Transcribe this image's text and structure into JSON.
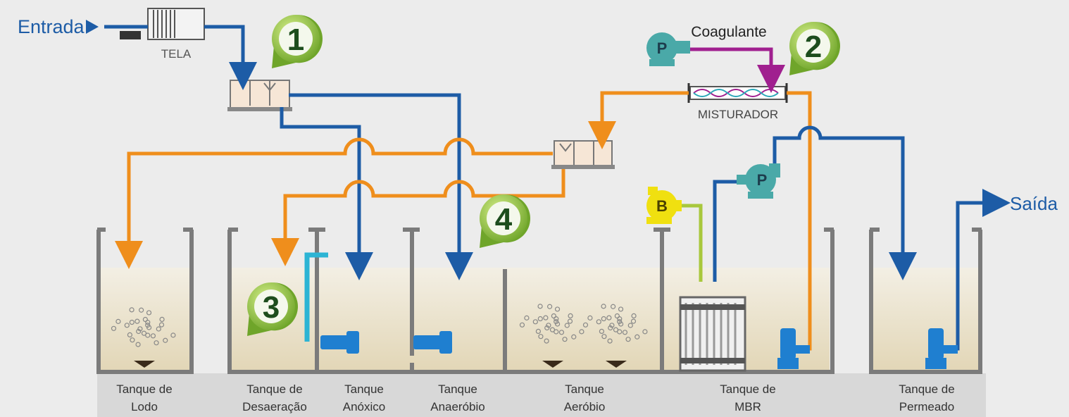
{
  "labels": {
    "entrada": "Entrada",
    "saida": "Saída",
    "tela": "TELA",
    "coagulante": "Coagulante",
    "misturador": "MISTURADOR"
  },
  "markers": [
    "1",
    "2",
    "3",
    "4"
  ],
  "equipment": {
    "pump_coagulant": "P",
    "pump_permeate": "P",
    "blower": "B"
  },
  "tanks": [
    {
      "line1": "Tanque de",
      "line2": "Lodo"
    },
    {
      "line1": "Tanque de",
      "line2": "Desaeração"
    },
    {
      "line1": "Tanque",
      "line2": "Anóxico"
    },
    {
      "line1": "Tanque",
      "line2": "Anaeróbio"
    },
    {
      "line1": "Tanque",
      "line2": "Aeróbio"
    },
    {
      "line1": "Tanque de",
      "line2": "MBR"
    },
    {
      "line1": "Tanque de",
      "line2": "Permeado"
    }
  ]
}
